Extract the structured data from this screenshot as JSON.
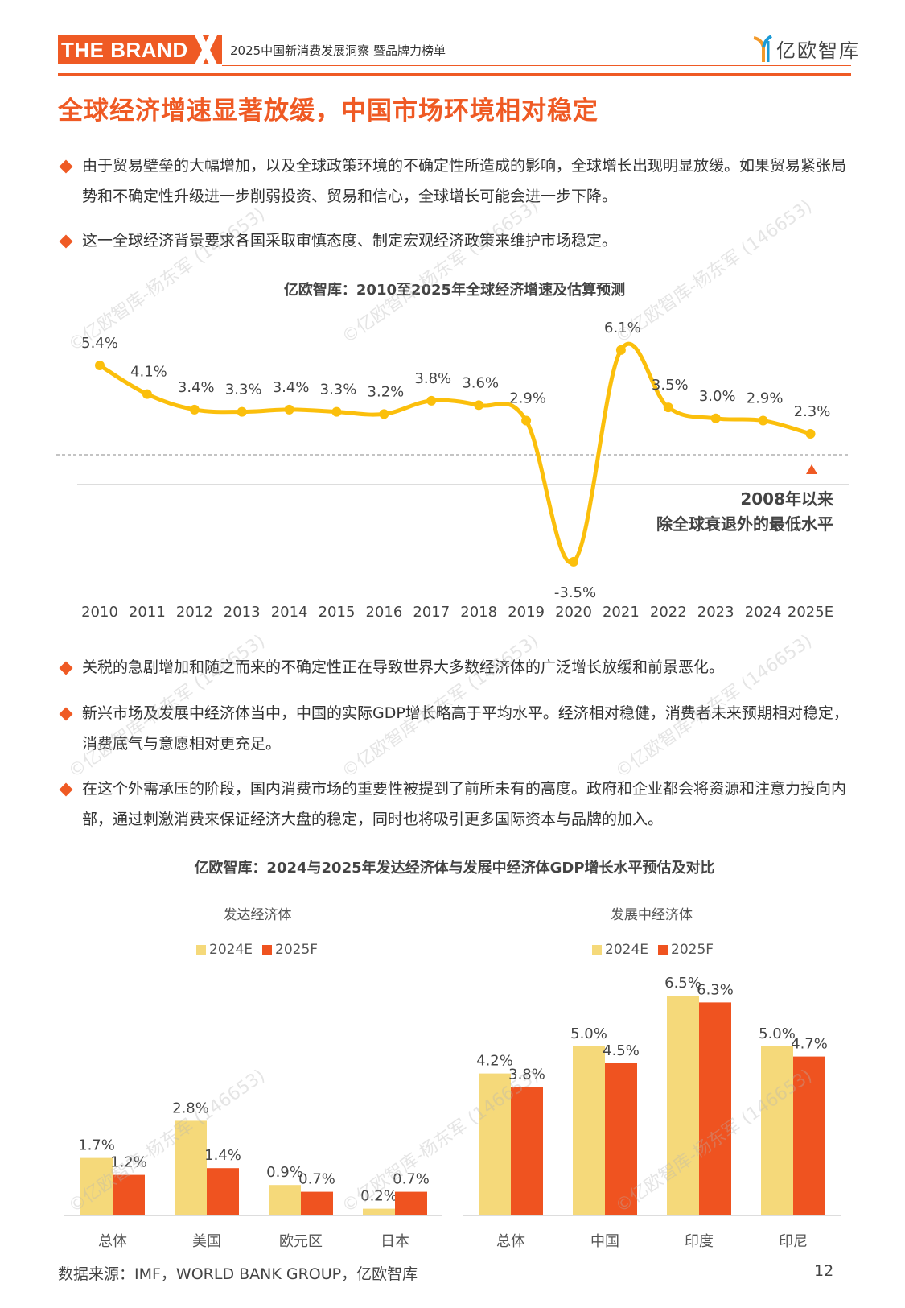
{
  "header": {
    "brand": "THE BRAND",
    "brand_mark": "X",
    "subtitle": "2025中国新消费发展洞察 暨品牌力榜单",
    "logo_text": "亿欧智库"
  },
  "page_title": "全球经济增速显著放缓，中国市场环境相对稳定",
  "bullets_top": [
    {
      "text": "由于贸易壁垒的大幅增加，以及全球政策环境的不确定性所造成的影响，全球增长出现明显放缓。如果贸易紧张局势和不确定性升级进一步削弱投资、贸易和信心，全球增长可能会进一步下降。"
    },
    {
      "text": "这一全球经济背景要求各国采取审慎态度、制定宏观经济政策来维护市场稳定。"
    }
  ],
  "bullets_bottom": [
    {
      "text": "关税的急剧增加和随之而来的不确定性正在导致世界大多数经济体的广泛增长放缓和前景恶化。"
    },
    {
      "text": "新兴市场及发展中经济体当中，中国的实际GDP增长略高于平均水平。经济相对稳健，消费者未来预期相对稳定，消费底气与意愿相对更充足。"
    },
    {
      "text": "在这个外需承压的阶段，国内消费市场的重要性被提到了前所未有的高度。政府和企业都会将资源和注意力投向内部，通过刺激消费来保证经济大盘的稳定，同时也将吸引更多国际资本与品牌的加入。"
    }
  ],
  "colors": {
    "accent": "#ef5a24",
    "line": "#fbbf0c",
    "bar_2024": "#f5d97a",
    "bar_2025": "#ef5320"
  },
  "chart_data": [
    {
      "type": "line",
      "title": "亿欧智库：2010至2025年全球经济增速及估算预测",
      "x": [
        "2010",
        "2011",
        "2012",
        "2013",
        "2014",
        "2015",
        "2016",
        "2017",
        "2018",
        "2019",
        "2020",
        "2021",
        "2022",
        "2023",
        "2024",
        "2025E"
      ],
      "labels": [
        "5.4%",
        "4.1%",
        "3.4%",
        "3.3%",
        "3.4%",
        "3.3%",
        "3.2%",
        "3.8%",
        "3.6%",
        "2.9%",
        "-3.5%",
        "6.1%",
        "3.5%",
        "3.0%",
        "2.9%",
        "2.3%"
      ],
      "values": [
        5.4,
        4.1,
        3.4,
        3.3,
        3.4,
        3.3,
        3.2,
        3.8,
        3.6,
        2.9,
        -3.5,
        6.1,
        3.5,
        3.0,
        2.9,
        2.3
      ],
      "annotation": {
        "line1": "2008年以来",
        "line2": "除全球衰退外的最低水平"
      },
      "xlabel": "",
      "ylabel": "",
      "grid": false
    },
    {
      "type": "bar",
      "title": "亿欧智库：2024与2025年发达经济体与发展中经济体GDP增长水平预估及对比",
      "subtitle": "发达经济体",
      "categories": [
        "总体",
        "美国",
        "欧元区",
        "日本"
      ],
      "series": [
        {
          "name": "2024E",
          "values": [
            1.7,
            2.8,
            0.9,
            0.2
          ],
          "labels": [
            "1.7%",
            "2.8%",
            "0.9%",
            "0.2%"
          ]
        },
        {
          "name": "2025F",
          "values": [
            1.2,
            1.4,
            0.7,
            0.7
          ],
          "labels": [
            "1.2%",
            "1.4%",
            "0.7%",
            "0.7%"
          ]
        }
      ]
    },
    {
      "type": "bar",
      "subtitle": "发展中经济体",
      "categories": [
        "总体",
        "中国",
        "印度",
        "印尼"
      ],
      "series": [
        {
          "name": "2024E",
          "values": [
            4.2,
            5.0,
            6.5,
            5.0
          ],
          "labels": [
            "4.2%",
            "5.0%",
            "6.5%",
            "5.0%"
          ]
        },
        {
          "name": "2025F",
          "values": [
            3.8,
            4.5,
            6.3,
            4.7
          ],
          "labels": [
            "3.8%",
            "4.5%",
            "6.3%",
            "4.7%"
          ]
        }
      ]
    }
  ],
  "footer": {
    "source": "数据来源：IMF，WORLD BANK GROUP，亿欧智库",
    "page_number": "12"
  },
  "watermark": "©亿欧智库-杨东军 (146653)"
}
